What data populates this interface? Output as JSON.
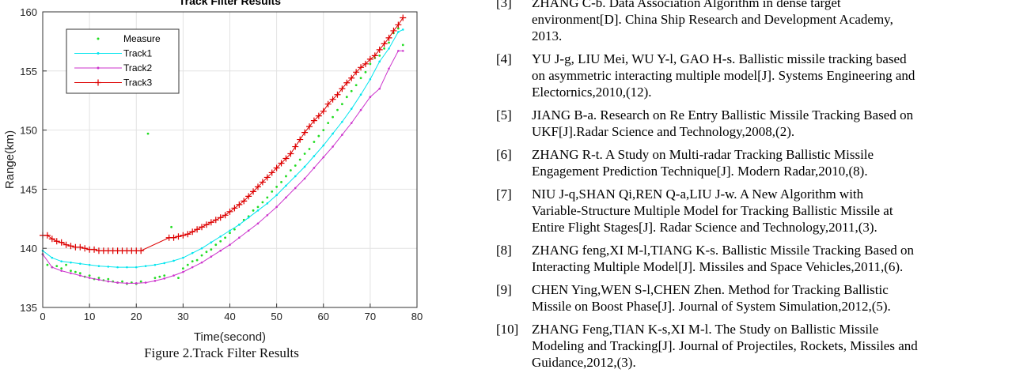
{
  "figure": {
    "caption": "Figure 2.Track Filter Results"
  },
  "chart_data": {
    "type": "line",
    "title": "Track Filter Results",
    "xlabel": "Time(second)",
    "ylabel": "Range(km)",
    "xlim": [
      0,
      80
    ],
    "ylim": [
      135,
      160
    ],
    "xticks": [
      0,
      10,
      20,
      30,
      40,
      50,
      60,
      70,
      80
    ],
    "yticks": [
      135,
      140,
      145,
      150,
      155,
      160
    ],
    "grid": true,
    "legend_position": "top-left",
    "legend": [
      "Measure",
      "Track1",
      "Track2",
      "Track3"
    ],
    "series": [
      {
        "name": "Measure",
        "style": "points",
        "color": "#22dd22",
        "x": [
          0,
          1,
          2,
          3,
          4,
          5,
          6,
          7,
          8,
          9,
          10,
          11,
          12,
          13,
          14,
          15,
          16,
          17,
          18,
          19,
          20,
          21,
          22.5,
          24,
          25,
          26,
          27.5,
          29,
          30,
          31,
          32,
          33,
          34,
          35,
          36,
          37,
          38,
          39,
          40,
          41,
          42,
          43,
          44,
          45,
          46,
          47,
          48,
          49,
          50,
          51,
          52,
          53,
          54,
          55,
          56,
          57,
          58,
          59,
          60,
          61,
          62,
          63,
          64,
          65,
          66,
          67,
          68,
          69,
          70,
          71,
          72,
          73,
          74,
          75,
          76,
          77
        ],
        "y": [
          139.5,
          138.6,
          138.4,
          138.5,
          138.3,
          138.6,
          138.1,
          138.0,
          137.9,
          137.6,
          137.7,
          137.4,
          137.5,
          137.3,
          137.4,
          137.2,
          137.1,
          137.2,
          137.0,
          137.1,
          137.0,
          137.2,
          149.7,
          137.5,
          137.6,
          137.7,
          141.8,
          137.5,
          138.3,
          138.6,
          138.9,
          139.0,
          139.4,
          139.7,
          139.9,
          140.3,
          140.6,
          140.9,
          141.3,
          141.6,
          142.0,
          142.4,
          142.7,
          143.2,
          143.5,
          143.9,
          144.3,
          144.8,
          145.2,
          145.6,
          146.1,
          146.6,
          147.0,
          147.5,
          148.0,
          148.4,
          149.0,
          149.5,
          150.0,
          150.6,
          151.1,
          151.7,
          152.2,
          152.8,
          153.3,
          153.8,
          154.4,
          154.9,
          155.6,
          156.1,
          156.3,
          156.9,
          157.4,
          158.2,
          158.6,
          157.2
        ]
      },
      {
        "name": "Track1",
        "style": "line-dot",
        "color": "#00e5ee",
        "x": [
          0,
          2,
          4,
          6,
          8,
          10,
          12,
          14,
          16,
          18,
          20,
          22,
          24,
          26,
          28,
          30,
          32,
          34,
          36,
          38,
          40,
          42,
          44,
          46,
          48,
          50,
          52,
          54,
          56,
          58,
          60,
          62,
          64,
          66,
          68,
          70,
          72,
          74,
          76,
          77
        ],
        "y": [
          139.8,
          139.2,
          138.9,
          138.8,
          138.7,
          138.6,
          138.5,
          138.45,
          138.4,
          138.4,
          138.4,
          138.5,
          138.6,
          138.75,
          138.95,
          139.2,
          139.6,
          140.0,
          140.5,
          141.0,
          141.5,
          142.0,
          142.6,
          143.2,
          143.8,
          144.5,
          145.3,
          146.1,
          146.9,
          147.8,
          148.7,
          149.7,
          150.7,
          151.8,
          153.0,
          154.3,
          155.8,
          156.9,
          158.3,
          158.5
        ]
      },
      {
        "name": "Track2",
        "style": "line-dot",
        "color": "#cc33cc",
        "x": [
          0,
          2,
          4,
          6,
          8,
          10,
          12,
          14,
          16,
          18,
          20,
          22,
          24,
          26,
          28,
          30,
          32,
          34,
          36,
          38,
          40,
          42,
          44,
          46,
          48,
          50,
          52,
          54,
          56,
          58,
          60,
          62,
          64,
          66,
          68,
          70,
          72,
          74,
          76,
          77
        ],
        "y": [
          139.5,
          138.4,
          138.1,
          137.9,
          137.7,
          137.5,
          137.35,
          137.2,
          137.1,
          137.05,
          137.05,
          137.1,
          137.25,
          137.45,
          137.7,
          138.0,
          138.4,
          138.8,
          139.3,
          139.8,
          140.3,
          140.9,
          141.5,
          142.1,
          142.8,
          143.5,
          144.3,
          145.1,
          145.9,
          146.8,
          147.7,
          148.6,
          149.6,
          150.6,
          151.7,
          152.8,
          153.5,
          155.2,
          156.7,
          156.7
        ]
      },
      {
        "name": "Track3",
        "style": "line-plus",
        "color": "#dd0000",
        "x": [
          0,
          1,
          2,
          3,
          4,
          5,
          6,
          7,
          8,
          9,
          10,
          11,
          12,
          13,
          14,
          15,
          16,
          17,
          18,
          19,
          20,
          21,
          27,
          28,
          29,
          30,
          31,
          32,
          33,
          34,
          35,
          36,
          37,
          38,
          39,
          40,
          41,
          42,
          43,
          44,
          45,
          46,
          47,
          48,
          49,
          50,
          51,
          52,
          53,
          54,
          55,
          56,
          57,
          58,
          59,
          60,
          61,
          62,
          63,
          64,
          65,
          66,
          67,
          68,
          69,
          70,
          71,
          72,
          73,
          74,
          75,
          76,
          77
        ],
        "y": [
          141.1,
          141.1,
          140.8,
          140.6,
          140.5,
          140.3,
          140.2,
          140.1,
          140.1,
          140.0,
          139.9,
          139.9,
          139.8,
          139.8,
          139.8,
          139.8,
          139.8,
          139.8,
          139.8,
          139.8,
          139.8,
          139.8,
          140.9,
          140.9,
          141.0,
          141.1,
          141.2,
          141.4,
          141.6,
          141.8,
          142.0,
          142.2,
          142.4,
          142.6,
          142.8,
          143.1,
          143.4,
          143.7,
          144.0,
          144.4,
          144.8,
          145.2,
          145.6,
          146.0,
          146.4,
          146.8,
          147.2,
          147.6,
          148.0,
          148.6,
          149.2,
          149.8,
          150.3,
          150.8,
          151.2,
          151.6,
          152.2,
          152.6,
          153.0,
          153.5,
          154.0,
          154.4,
          154.9,
          155.3,
          155.6,
          156.0,
          156.3,
          156.8,
          157.3,
          157.8,
          158.4,
          158.9,
          159.5
        ]
      }
    ]
  },
  "references": [
    {
      "num": "[3]",
      "lines": [
        "ZHANG C-b. Data Association Algorithm in dense target",
        "environment[D]. China Ship Research and Development Academy,",
        "2013."
      ]
    },
    {
      "num": "[4]",
      "lines": [
        "YU J-g, LIU Mei, WU Y-l, GAO H-s. Ballistic missile tracking based",
        "on asymmetric interacting multiple model[J]. Systems Engineering and",
        "Electornics,2010,(12)."
      ]
    },
    {
      "num": "[5]",
      "lines": [
        "JIANG B-a. Research on Re Entry Ballistic Missile Tracking Based on",
        "UKF[J].Radar Science and Technology,2008,(2)."
      ]
    },
    {
      "num": "[6]",
      "lines": [
        "ZHANG R-t. A Study on Multi-radar Tracking Ballistic Missile",
        "Engagement Prediction Technique[J]. Modern Radar,2010,(8)."
      ]
    },
    {
      "num": "[7]",
      "lines": [
        "NIU J-q,SHAN Qi,REN Q-a,LIU J-w. A New Algorithm with",
        "Variable-Structure Multiple Model for Tracking Ballistic Missile at",
        "Entire Flight Stages[J]. Radar Science and Technology,2011,(3)."
      ]
    },
    {
      "num": "[8]",
      "lines": [
        "ZHANG feng,XI M-l,TIANG K-s. Ballistic Missile Tracking Based on",
        "Interacting Multiple Model[J]. Missiles and Space Vehicles,2011,(6)."
      ]
    },
    {
      "num": "[9]",
      "lines": [
        "CHEN Ying,WEN S-l,CHEN Zhen. Method for Tracking Ballistic",
        "Missile on Boost Phase[J]. Journal of System Simulation,2012,(5)."
      ]
    },
    {
      "num": "[10]",
      "lines": [
        "ZHANG Feng,TIAN K-s,XI M-l. The Study on Ballistic Missile",
        "Modeling and Tracking[J]. Journal of Projectiles, Rockets, Missiles and",
        "Guidance,2012,(3)."
      ]
    }
  ]
}
